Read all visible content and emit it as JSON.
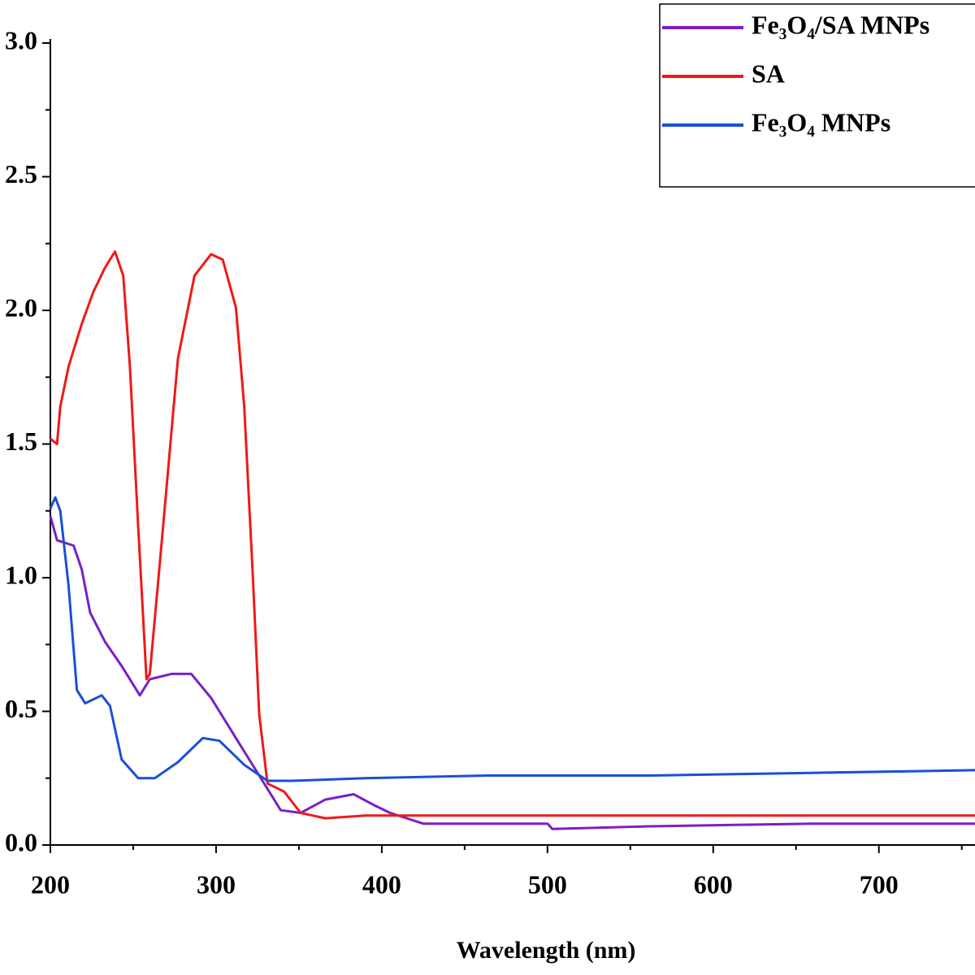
{
  "chart_data": {
    "type": "line",
    "x_label": "Wavelength (nm)",
    "xlim": [
      200,
      758
    ],
    "ylim": [
      0,
      3
    ],
    "xticks": [
      200,
      300,
      400,
      500,
      600,
      700
    ],
    "yticks": [
      {
        "value": 0,
        "label": "0.0"
      },
      {
        "value": 0.5,
        "label": "0.5"
      },
      {
        "value": 1,
        "label": "1.0"
      },
      {
        "value": 1.5,
        "label": "1.5"
      },
      {
        "value": 2,
        "label": "2.0"
      },
      {
        "value": 2.5,
        "label": "2.5"
      },
      {
        "value": 3,
        "label": "3.0"
      }
    ],
    "legend": "upper right",
    "series": [
      {
        "name": "Fe₃O₄/SA MNPs",
        "color": "#7b1fc4",
        "x": [
          200,
          204,
          214,
          219,
          224,
          233,
          243,
          254,
          260,
          273,
          285,
          297,
          312,
          326,
          339,
          351,
          366,
          383,
          395,
          405,
          425,
          464,
          500,
          503,
          562,
          660,
          758
        ],
        "values": [
          1.23,
          1.14,
          1.12,
          1.03,
          0.87,
          0.76,
          0.67,
          0.56,
          0.62,
          0.64,
          0.64,
          0.55,
          0.4,
          0.26,
          0.13,
          0.12,
          0.17,
          0.19,
          0.15,
          0.12,
          0.08,
          0.08,
          0.08,
          0.06,
          0.07,
          0.08,
          0.08
        ]
      },
      {
        "name": "SA",
        "color": "#f01818",
        "x": [
          200,
          204,
          206,
          211,
          219,
          226,
          233,
          239,
          244,
          248,
          253,
          258,
          260,
          268,
          277,
          287,
          297,
          304,
          312,
          317,
          322,
          326,
          331,
          341,
          351,
          366,
          390,
          415,
          464,
          513,
          562,
          611,
          660,
          758
        ],
        "values": [
          1.52,
          1.5,
          1.64,
          1.79,
          1.95,
          2.07,
          2.16,
          2.22,
          2.13,
          1.79,
          1.19,
          0.62,
          0.64,
          1.19,
          1.82,
          2.13,
          2.21,
          2.19,
          2.01,
          1.64,
          1.03,
          0.49,
          0.23,
          0.2,
          0.12,
          0.1,
          0.11,
          0.11,
          0.11,
          0.11,
          0.11,
          0.11,
          0.11,
          0.11
        ]
      },
      {
        "name": "Fe₃O₄ MNPs",
        "color": "#1a4fd8",
        "x": [
          200,
          203,
          206,
          211,
          216,
          221,
          231,
          236,
          243,
          253,
          263,
          277,
          292,
          302,
          317,
          331,
          346,
          390,
          464,
          562,
          660,
          758
        ],
        "values": [
          1.26,
          1.3,
          1.25,
          0.97,
          0.58,
          0.53,
          0.56,
          0.52,
          0.32,
          0.25,
          0.25,
          0.31,
          0.4,
          0.39,
          0.3,
          0.24,
          0.24,
          0.25,
          0.26,
          0.26,
          0.27,
          0.28
        ]
      }
    ]
  }
}
